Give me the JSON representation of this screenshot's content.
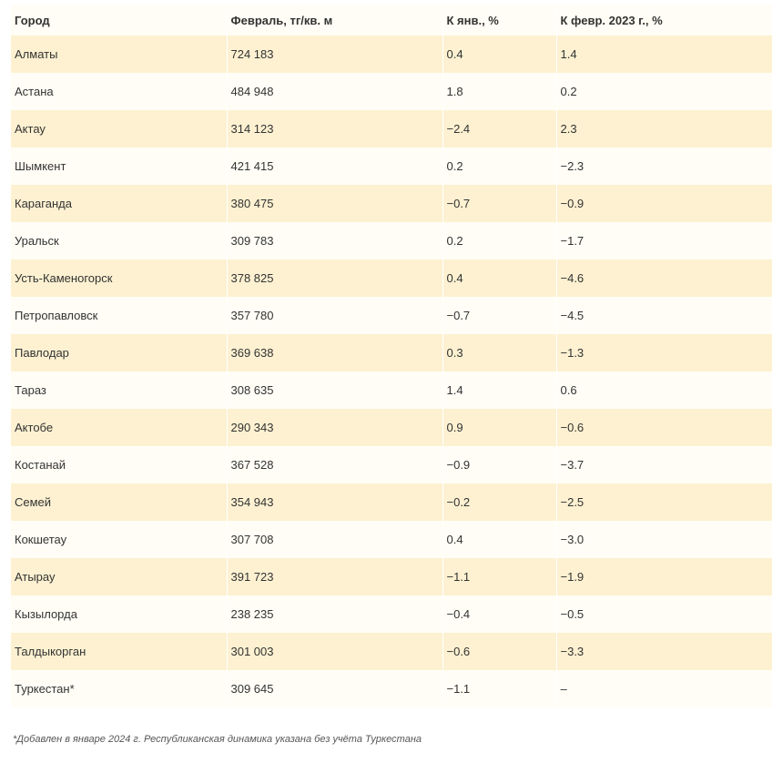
{
  "table": {
    "headers": [
      "Город",
      "Февраль, тг/кв. м",
      "К янв., %",
      "К февр. 2023 г., %"
    ],
    "rows": [
      [
        "Алматы",
        "724 183",
        "0.4",
        "1.4"
      ],
      [
        "Астана",
        "484 948",
        "1.8",
        "0.2"
      ],
      [
        "Актау",
        "314 123",
        "−2.4",
        "2.3"
      ],
      [
        "Шымкент",
        "421 415",
        "0.2",
        "−2.3"
      ],
      [
        "Караганда",
        "380 475",
        "−0.7",
        "−0.9"
      ],
      [
        "Уральск",
        "309 783",
        "0.2",
        "−1.7"
      ],
      [
        "Усть-Каменогорск",
        "378 825",
        "0.4",
        "−4.6"
      ],
      [
        "Петропавловск",
        "357 780",
        "−0.7",
        "−4.5"
      ],
      [
        "Павлодар",
        "369 638",
        "0.3",
        "−1.3"
      ],
      [
        "Тараз",
        "308 635",
        "1.4",
        "0.6"
      ],
      [
        "Актобе",
        "290 343",
        "0.9",
        "−0.6"
      ],
      [
        "Костанай",
        "367 528",
        "−0.9",
        "−3.7"
      ],
      [
        "Семей",
        "354 943",
        "−0.2",
        "−2.5"
      ],
      [
        "Кокшетау",
        "307 708",
        "0.4",
        "−3.0"
      ],
      [
        "Атырау",
        "391 723",
        "−1.1",
        "−1.9"
      ],
      [
        "Кызылорда",
        "238 235",
        "−0.4",
        "−0.5"
      ],
      [
        "Талдыкорган",
        "301 003",
        "−0.6",
        "−3.3"
      ],
      [
        "Туркестан*",
        "309 645",
        "−1.1",
        "–"
      ]
    ]
  },
  "footnote": "*Добавлен в январе 2024 г. Республиканская динамика указана без учёта Туркестана",
  "colors": {
    "row_odd": "#fdf1d1",
    "row_even": "#fffdf5",
    "text": "#333333"
  }
}
